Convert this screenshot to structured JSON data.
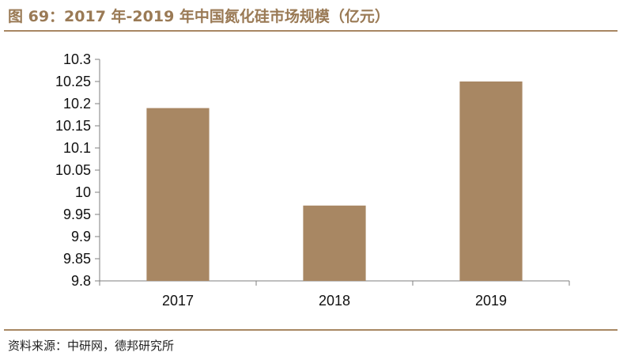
{
  "figure": {
    "title": "图 69：2017 年-2019 年中国氮化硅市场规模（亿元）",
    "source": "资料来源：中研网，德邦研究所"
  },
  "colors": {
    "bar": "#a88763",
    "title": "#9a7a55",
    "rule": "#a88763",
    "axis": "#7f7f7f"
  },
  "chart_data": {
    "type": "bar",
    "title": "图 69：2017 年-2019 年中国氮化硅市场规模（亿元）",
    "xlabel": "",
    "ylabel": "",
    "categories": [
      "2017",
      "2018",
      "2019"
    ],
    "values": [
      10.19,
      9.97,
      10.25
    ],
    "ylim": [
      9.8,
      10.3
    ],
    "yticks": [
      "9.8",
      "9.85",
      "9.9",
      "9.95",
      "10",
      "10.05",
      "10.1",
      "10.15",
      "10.2",
      "10.25",
      "10.3"
    ],
    "grid": false,
    "legend": "none"
  }
}
